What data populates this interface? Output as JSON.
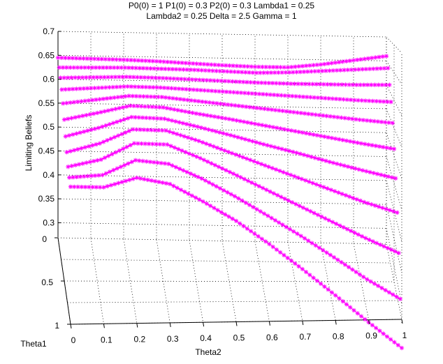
{
  "figure": {
    "title_line1": "P0(0) = 1 P1(0) = 0.3 P2(0) = 0.3 Lambda1 = 0.25",
    "title_line2": "Lambda2 = 0.25 Delta = 2.5 Gamma = 1"
  },
  "chart_data": {
    "type": "line",
    "view": "3d",
    "marker": "asterisk",
    "color": "#FF00FF",
    "grid": true,
    "xlabel": "Theta2",
    "ylabel": "Theta1",
    "zlabel": "Limiting Beliefs",
    "xlim": [
      0,
      1
    ],
    "ylim": [
      0,
      1
    ],
    "zlim": [
      0.27,
      0.7
    ],
    "xticks": [
      "0",
      "0.1",
      "0.2",
      "0.3",
      "0.4",
      "0.5",
      "0.6",
      "0.7",
      "0.8",
      "0.9",
      "1"
    ],
    "yticks": [
      "0",
      "0.5",
      "1"
    ],
    "zticks": [
      "0.3",
      "0.35",
      "0.4",
      "0.45",
      "0.5",
      "0.55",
      "0.6",
      "0.65",
      "0.7"
    ],
    "x": [
      0,
      0.1,
      0.2,
      0.3,
      0.4,
      0.5,
      0.6,
      0.7,
      0.8,
      0.9,
      1.0
    ],
    "series": [
      {
        "y": 0.0,
        "values": [
          0.645,
          0.644,
          0.643,
          0.641,
          0.638,
          0.635,
          0.633,
          0.633,
          0.64,
          0.65,
          0.66
        ]
      },
      {
        "y": 0.1,
        "values": [
          0.63,
          0.631,
          0.632,
          0.631,
          0.63,
          0.628,
          0.626,
          0.628,
          0.632,
          0.636,
          0.64
        ]
      },
      {
        "y": 0.2,
        "values": [
          0.615,
          0.617,
          0.619,
          0.618,
          0.616,
          0.614,
          0.612,
          0.611,
          0.611,
          0.611,
          0.612
        ]
      },
      {
        "y": 0.3,
        "values": [
          0.598,
          0.602,
          0.606,
          0.605,
          0.602,
          0.599,
          0.596,
          0.593,
          0.59,
          0.587,
          0.585
        ]
      },
      {
        "y": 0.4,
        "values": [
          0.578,
          0.586,
          0.594,
          0.593,
          0.587,
          0.581,
          0.575,
          0.569,
          0.563,
          0.557,
          0.552
        ]
      },
      {
        "y": 0.5,
        "values": [
          0.555,
          0.568,
          0.582,
          0.58,
          0.57,
          0.561,
          0.551,
          0.541,
          0.531,
          0.521,
          0.512
        ]
      },
      {
        "y": 0.6,
        "values": [
          0.532,
          0.548,
          0.568,
          0.566,
          0.553,
          0.539,
          0.524,
          0.51,
          0.495,
          0.481,
          0.468
        ]
      },
      {
        "y": 0.7,
        "values": [
          0.512,
          0.528,
          0.553,
          0.552,
          0.535,
          0.515,
          0.495,
          0.475,
          0.455,
          0.435,
          0.418
        ]
      },
      {
        "y": 0.8,
        "values": [
          0.495,
          0.508,
          0.536,
          0.535,
          0.513,
          0.488,
          0.462,
          0.436,
          0.41,
          0.384,
          0.36
        ]
      },
      {
        "y": 0.9,
        "values": [
          0.485,
          0.49,
          0.515,
          0.51,
          0.487,
          0.459,
          0.428,
          0.396,
          0.362,
          0.327,
          0.296
        ]
      },
      {
        "y": 1.0,
        "values": [
          0.478,
          0.478,
          0.494,
          0.485,
          0.458,
          0.428,
          0.392,
          0.353,
          0.312,
          0.27,
          0.23
        ]
      }
    ]
  }
}
